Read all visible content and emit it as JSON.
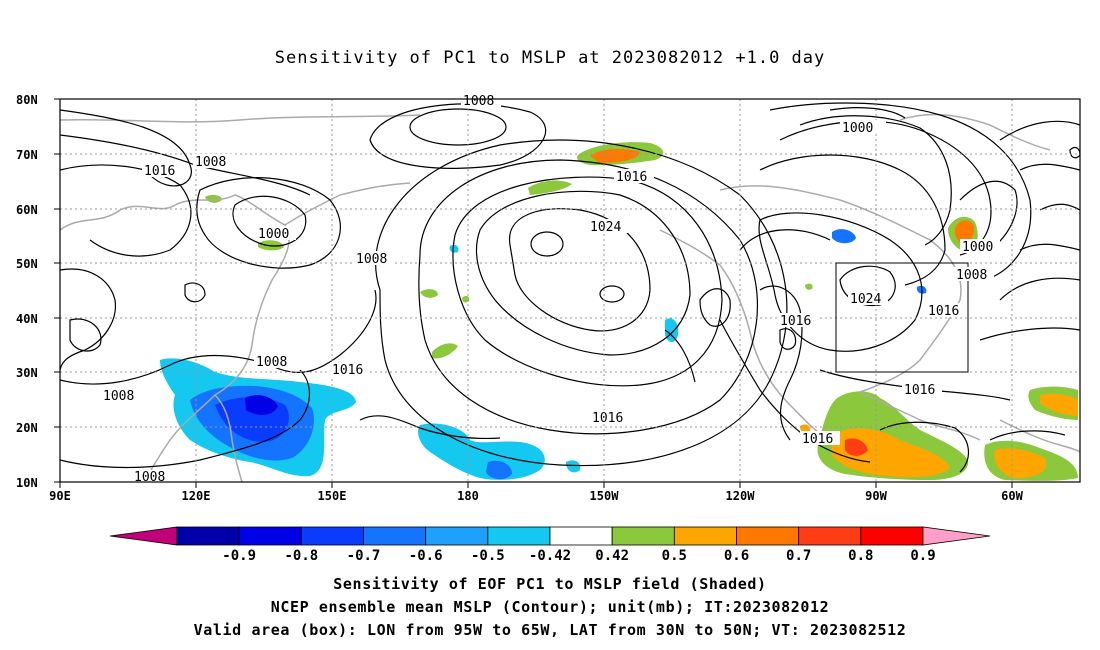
{
  "title": "Sensitivity of PC1 to MSLP at 2023082012 +1.0 day",
  "lat_labels": [
    "80N",
    "70N",
    "60N",
    "50N",
    "40N",
    "30N",
    "20N",
    "10N"
  ],
  "lon_labels": [
    "90E",
    "120E",
    "150E",
    "180",
    "150W",
    "120W",
    "90W",
    "60W"
  ],
  "contour_labels": [
    "1008",
    "1016",
    "1008",
    "1000",
    "1008",
    "1024",
    "1016",
    "1000",
    "1000",
    "1008",
    "1024",
    "1016",
    "1016",
    "1016",
    "1008",
    "1016",
    "1008",
    "1016",
    "1016",
    "1008",
    "1016"
  ],
  "colorbar": {
    "labels": [
      "-0.9",
      "-0.8",
      "-0.7",
      "-0.6",
      "-0.5",
      "-0.42",
      "0.42",
      "0.5",
      "0.6",
      "0.7",
      "0.8",
      "0.9"
    ],
    "colors": [
      "#c2007a",
      "#0000a8",
      "#0000e6",
      "#0a3cff",
      "#1473ff",
      "#1ea0ff",
      "#14c8f0",
      "#ffffff",
      "#8cc83c",
      "#ffa500",
      "#ff7800",
      "#ff3c14",
      "#ff0000",
      "#ff9ec8"
    ]
  },
  "valid_box": {
    "lon_from": "95W",
    "lon_to": "65W",
    "lat_from": "30N",
    "lat_to": "50N"
  },
  "footer": [
    "Sensitivity of EOF PC1 to MSLP field (Shaded)",
    "NCEP ensemble mean MSLP (Contour); unit(mb); IT:2023082012",
    "Valid area (box): LON from 95W to 65W, LAT from 30N to 50N; VT: 2023082512"
  ]
}
